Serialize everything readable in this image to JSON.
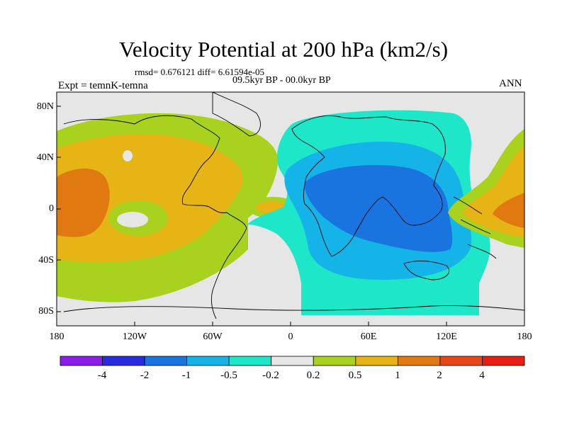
{
  "title": "Velocity Potential at 200 hPa (km2/s)",
  "stats_line": "rmsd= 0.676121  diff= 6.61594e-05",
  "period": "09.5kyr BP - 00.0kyr BP",
  "experiment": "Expt = temnK-temna",
  "season": "ANN",
  "lat_labels": [
    "80N",
    "40N",
    "0",
    "40S",
    "80S"
  ],
  "lon_labels": [
    "180",
    "120W",
    "60W",
    "0",
    "60E",
    "120E",
    "180"
  ],
  "colorbar": {
    "colors": [
      "#8a1ee8",
      "#2a2ae0",
      "#1a74e0",
      "#14b4e8",
      "#1ee6c8",
      "#e6e6e6",
      "#a8d21e",
      "#e6b414",
      "#e07a10",
      "#e6461a",
      "#e61e14"
    ],
    "labels": [
      "-4",
      "-2",
      "-1",
      "-0.5",
      "-0.2",
      "0.2",
      "0.5",
      "1",
      "2",
      "4"
    ]
  },
  "map_colors": {
    "neutral": "#e6e6e6",
    "pos_weak": "#a8d21e",
    "pos_mid": "#e6b414",
    "pos_strong": "#e07a10",
    "neg_weak": "#1ee6c8",
    "neg_mid": "#14b4e8",
    "neg_strong": "#1a74e0",
    "coast": "#000000"
  }
}
